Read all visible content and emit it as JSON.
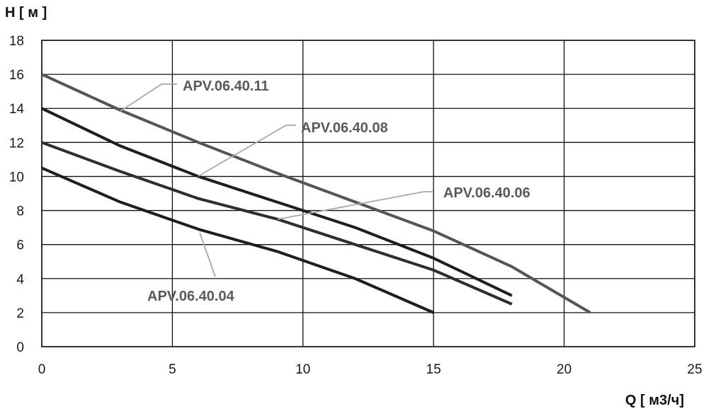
{
  "chart_data": {
    "type": "line",
    "ylabel": "H [ м ]",
    "xlabel": "Q [ м3/ч]",
    "xlim": [
      0,
      25
    ],
    "ylim": [
      0,
      18
    ],
    "x_ticks": [
      0,
      5,
      10,
      15,
      20,
      25
    ],
    "y_ticks": [
      0,
      2,
      4,
      6,
      8,
      10,
      12,
      14,
      16,
      18
    ],
    "grid": true,
    "legend": "inline callout labels",
    "series": [
      {
        "name": "APV.06.40.11",
        "color": "#555555",
        "x": [
          0,
          3,
          6,
          9,
          12,
          15,
          18,
          21
        ],
        "y": [
          16,
          13.9,
          12.0,
          10.2,
          8.5,
          6.8,
          4.7,
          2.0
        ]
      },
      {
        "name": "APV.06.40.08",
        "color": "#1e1e1e",
        "x": [
          0,
          3,
          6,
          9,
          12,
          15,
          18
        ],
        "y": [
          14,
          11.8,
          10.0,
          8.5,
          7.0,
          5.2,
          3.0
        ]
      },
      {
        "name": "APV.06.40.06",
        "color": "#2e2e2e",
        "x": [
          0,
          3,
          6,
          9,
          12,
          15,
          18
        ],
        "y": [
          12,
          10.3,
          8.7,
          7.5,
          6.0,
          4.5,
          2.5
        ]
      },
      {
        "name": "APV.06.40.04",
        "color": "#1e1e1e",
        "x": [
          0,
          3,
          6,
          9,
          12,
          15
        ],
        "y": [
          10.5,
          8.5,
          6.9,
          5.6,
          4.0,
          2.0
        ]
      }
    ],
    "annotations": [
      {
        "text": "APV.06.40.11",
        "series": 0,
        "point": [
          3,
          13.9
        ]
      },
      {
        "text": "APV.06.40.08",
        "series": 1,
        "point": [
          6,
          10.0
        ]
      },
      {
        "text": "APV.06.40.06",
        "series": 2,
        "point": [
          9,
          7.5
        ]
      },
      {
        "text": "APV.06.40.04",
        "series": 3,
        "point": [
          6,
          6.9
        ]
      }
    ]
  }
}
